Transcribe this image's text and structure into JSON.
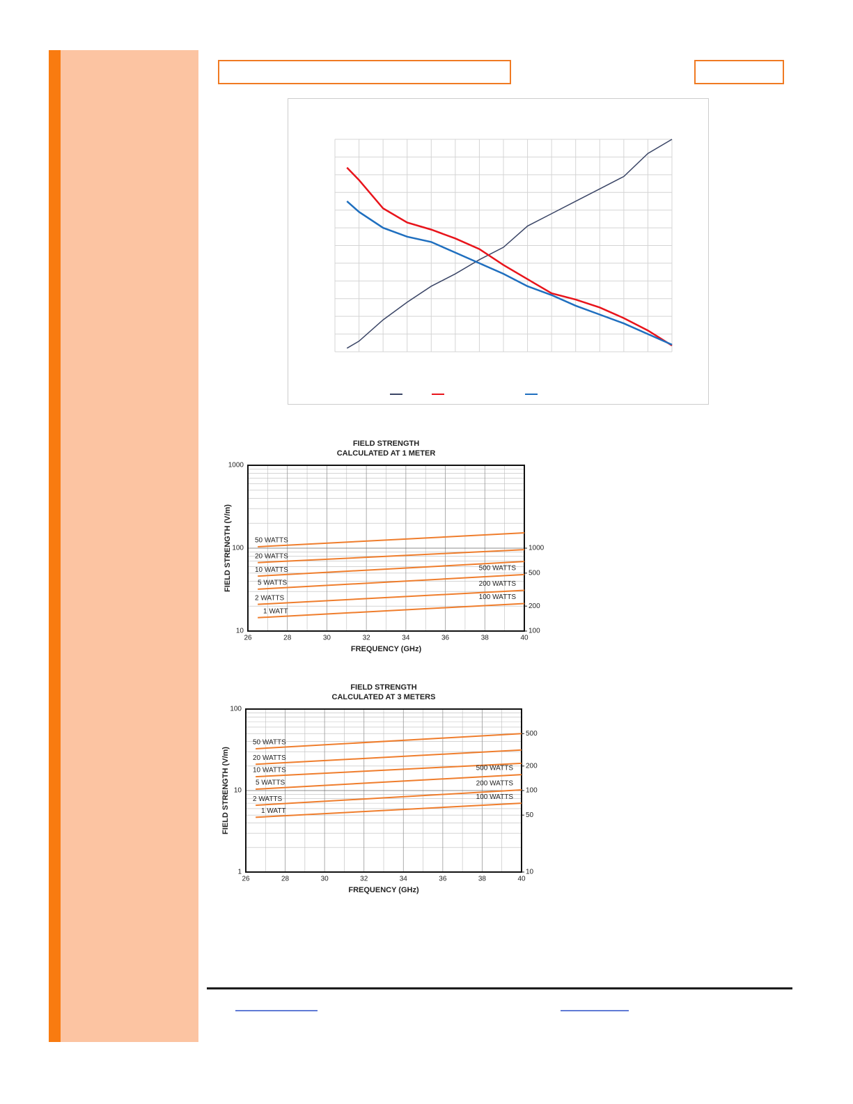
{
  "chart_data": [
    {
      "type": "line",
      "x": [
        0.5,
        1,
        2,
        3,
        4,
        5,
        6,
        7,
        8,
        9,
        10,
        11,
        12,
        13,
        14
      ],
      "xlim": [
        0,
        14
      ],
      "ylim": [
        0,
        12
      ],
      "grid": true,
      "series": [
        {
          "color": "#3a4566",
          "values": [
            0.2,
            0.6,
            1.8,
            2.8,
            3.7,
            4.4,
            5.2,
            5.9,
            7.1,
            7.8,
            8.5,
            9.2,
            9.9,
            11.2,
            12
          ]
        },
        {
          "color": "#e8141b",
          "values": [
            10.4,
            9.7,
            8.1,
            7.3,
            6.9,
            6.4,
            5.8,
            4.9,
            4.1,
            3.3,
            2.95,
            2.5,
            1.9,
            1.2,
            0.35
          ]
        },
        {
          "color": "#1f6fbf",
          "values": [
            8.5,
            7.9,
            7.0,
            6.5,
            6.2,
            5.6,
            5.0,
            4.4,
            3.7,
            3.2,
            2.6,
            2.1,
            1.6,
            1.0,
            0.4
          ]
        }
      ]
    },
    {
      "type": "line",
      "title": "FIELD STRENGTH",
      "subtitle": "CALCULATED AT 1 METER",
      "xlabel": "FREQUENCY (GHz)",
      "ylabel": "FIELD STRENGTH (V/m)",
      "x": [
        26.5,
        40
      ],
      "xlim": [
        26,
        40
      ],
      "xticks": [
        26,
        28,
        30,
        32,
        34,
        36,
        38,
        40
      ],
      "ylim": [
        10,
        1000
      ],
      "yticks": [
        10,
        100,
        1000
      ],
      "log_scale": true,
      "y2lim": [
        100,
        10000
      ],
      "y2ticks": [
        100,
        200,
        500,
        1000
      ],
      "grid": true,
      "series": [
        {
          "name": "50 WATTS",
          "color": "#ef7d2c",
          "values": [
            104,
            153
          ]
        },
        {
          "name": "20 WATTS",
          "color": "#ef7d2c",
          "values": [
            67,
            96
          ]
        },
        {
          "name": "10 WATTS",
          "color": "#ef7d2c",
          "values": [
            46,
            69
          ]
        },
        {
          "name": "5 WATTS",
          "color": "#ef7d2c",
          "values": [
            32,
            48
          ]
        },
        {
          "name": "2 WATTS",
          "color": "#ef7d2c",
          "values": [
            21,
            31
          ]
        },
        {
          "name": "1 WATT",
          "color": "#ef7d2c",
          "values": [
            14.5,
            21.5
          ]
        }
      ],
      "annotations": [
        "500 WATTS",
        "200 WATTS",
        "100 WATTS"
      ]
    },
    {
      "type": "line",
      "title": "FIELD STRENGTH",
      "subtitle": "CALCULATED AT 3 METERS",
      "xlabel": "FREQUENCY (GHz)",
      "ylabel": "FIELD STRENGTH (V/m)",
      "x": [
        26.5,
        40
      ],
      "xlim": [
        26,
        40
      ],
      "xticks": [
        26,
        28,
        30,
        32,
        34,
        36,
        38,
        40
      ],
      "ylim": [
        1,
        100
      ],
      "yticks": [
        1,
        10,
        100
      ],
      "log_scale": true,
      "y2lim": [
        10,
        1000
      ],
      "y2ticks": [
        10,
        50,
        100,
        200,
        500
      ],
      "grid": true,
      "series": [
        {
          "name": "50 WATTS",
          "color": "#ef7d2c",
          "values": [
            32.6,
            50
          ]
        },
        {
          "name": "20 WATTS",
          "color": "#ef7d2c",
          "values": [
            21,
            31.5
          ]
        },
        {
          "name": "10 WATTS",
          "color": "#ef7d2c",
          "values": [
            14.8,
            21.6
          ]
        },
        {
          "name": "5 WATTS",
          "color": "#ef7d2c",
          "values": [
            10.4,
            15.7
          ]
        },
        {
          "name": "2 WATTS",
          "color": "#ef7d2c",
          "values": [
            6.6,
            10.2
          ]
        },
        {
          "name": "1 WATT",
          "color": "#ef7d2c",
          "values": [
            4.7,
            7.0
          ]
        }
      ],
      "annotations": [
        "500 WATTS",
        "200 WATTS",
        "100 WATTS"
      ]
    }
  ]
}
